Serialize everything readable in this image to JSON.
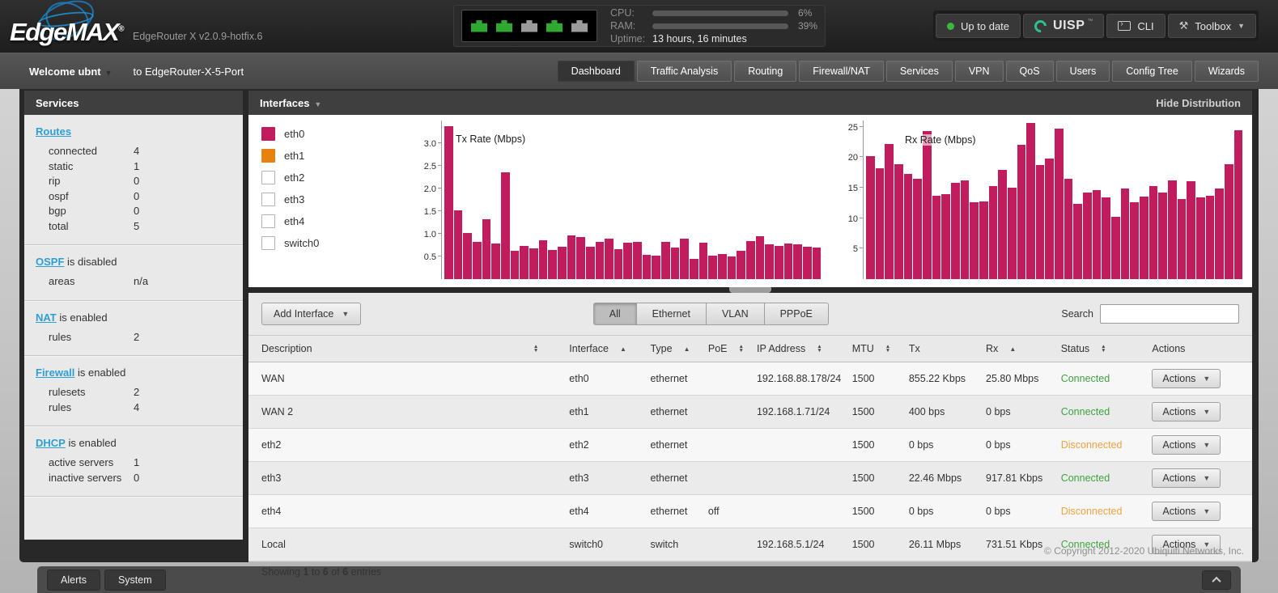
{
  "header": {
    "logo": "EdgeMAX",
    "logo_reg": "®",
    "version": "EdgeRouter X v2.0.9-hotfix.6",
    "ports": [
      "on",
      "on",
      "off",
      "on",
      "off"
    ],
    "stats": {
      "cpu_label": "CPU:",
      "cpu_pct": 6,
      "cpu_text": "6%",
      "ram_label": "RAM:",
      "ram_pct": 39,
      "ram_text": "39%",
      "uptime_label": "Uptime:",
      "uptime": "13 hours, 16 minutes"
    },
    "buttons": {
      "update": "Up to date",
      "uisp": "UISP",
      "uisp_tm": "™",
      "cli": "CLI",
      "toolbox": "Toolbox"
    }
  },
  "navbar": {
    "welcome": "Welcome ubnt",
    "to_device": "to EdgeRouter-X-5-Port",
    "tabs": [
      {
        "label": "Dashboard",
        "active": true
      },
      {
        "label": "Traffic Analysis",
        "active": false
      },
      {
        "label": "Routing",
        "active": false
      },
      {
        "label": "Firewall/NAT",
        "active": false
      },
      {
        "label": "Services",
        "active": false
      },
      {
        "label": "VPN",
        "active": false
      },
      {
        "label": "QoS",
        "active": false
      },
      {
        "label": "Users",
        "active": false
      },
      {
        "label": "Config Tree",
        "active": false
      },
      {
        "label": "Wizards",
        "active": false
      }
    ]
  },
  "sidebar": {
    "title": "Services",
    "sections": [
      {
        "link": "Routes",
        "suffix": "",
        "rows": [
          [
            "connected",
            "4"
          ],
          [
            "static",
            "1"
          ],
          [
            "rip",
            "0"
          ],
          [
            "ospf",
            "0"
          ],
          [
            "bgp",
            "0"
          ],
          [
            "total",
            "5"
          ]
        ]
      },
      {
        "link": "OSPF",
        "suffix": " is disabled",
        "rows": [
          [
            "areas",
            "n/a"
          ]
        ]
      },
      {
        "link": "NAT",
        "suffix": " is enabled",
        "rows": [
          [
            "rules",
            "2"
          ]
        ]
      },
      {
        "link": "Firewall",
        "suffix": " is enabled",
        "rows": [
          [
            "rulesets",
            "2"
          ],
          [
            "rules",
            "4"
          ]
        ]
      },
      {
        "link": "DHCP",
        "suffix": " is enabled",
        "rows": [
          [
            "active servers",
            "1"
          ],
          [
            "inactive servers",
            "0"
          ]
        ]
      }
    ]
  },
  "main": {
    "panel_title": "Interfaces",
    "hide_distribution": "Hide Distribution",
    "legend": [
      {
        "label": "eth0",
        "color": "#c11d5e"
      },
      {
        "label": "eth1",
        "color": "#e8820e"
      },
      {
        "label": "eth2",
        "color": null
      },
      {
        "label": "eth3",
        "color": null
      },
      {
        "label": "eth4",
        "color": null
      },
      {
        "label": "switch0",
        "color": null
      }
    ],
    "toolbar": {
      "add_interface": "Add Interface",
      "filters": [
        {
          "label": "All",
          "active": true
        },
        {
          "label": "Ethernet",
          "active": false
        },
        {
          "label": "VLAN",
          "active": false
        },
        {
          "label": "PPPoE",
          "active": false
        }
      ],
      "search_label": "Search",
      "search_value": ""
    },
    "table": {
      "columns": [
        {
          "label": "Description",
          "sort": "both"
        },
        {
          "label": "Interface",
          "sort": "asc"
        },
        {
          "label": "Type",
          "sort": "asc"
        },
        {
          "label": "PoE",
          "sort": "both"
        },
        {
          "label": "IP Address",
          "sort": "both"
        },
        {
          "label": "MTU",
          "sort": "both"
        },
        {
          "label": "Tx",
          "sort": "none"
        },
        {
          "label": "Rx",
          "sort": "asc"
        },
        {
          "label": "Status",
          "sort": "both"
        },
        {
          "label": "Actions",
          "sort": "none"
        }
      ],
      "actions_label": "Actions",
      "rows": [
        {
          "description": "WAN",
          "interface": "eth0",
          "type": "ethernet",
          "poe": "",
          "ip": "192.168.88.178/24",
          "mtu": "1500",
          "tx": "855.22 Kbps",
          "rx": "25.80 Mbps",
          "status": "Connected"
        },
        {
          "description": "WAN 2",
          "interface": "eth1",
          "type": "ethernet",
          "poe": "",
          "ip": "192.168.1.71/24",
          "mtu": "1500",
          "tx": "400 bps",
          "rx": "0 bps",
          "status": "Connected"
        },
        {
          "description": "eth2",
          "interface": "eth2",
          "type": "ethernet",
          "poe": "",
          "ip": "",
          "mtu": "1500",
          "tx": "0 bps",
          "rx": "0 bps",
          "status": "Disconnected"
        },
        {
          "description": "eth3",
          "interface": "eth3",
          "type": "ethernet",
          "poe": "",
          "ip": "",
          "mtu": "1500",
          "tx": "22.46 Mbps",
          "rx": "917.81 Kbps",
          "status": "Connected"
        },
        {
          "description": "eth4",
          "interface": "eth4",
          "type": "ethernet",
          "poe": "off",
          "ip": "",
          "mtu": "1500",
          "tx": "0 bps",
          "rx": "0 bps",
          "status": "Disconnected"
        },
        {
          "description": "Local",
          "interface": "switch0",
          "type": "switch",
          "poe": "",
          "ip": "192.168.5.1/24",
          "mtu": "1500",
          "tx": "26.11 Mbps",
          "rx": "731.51 Kbps",
          "status": "Connected"
        }
      ]
    },
    "showing": {
      "s1": "Showing ",
      "b1": "1",
      "s2": " to ",
      "b2": "6",
      "s3": " of ",
      "b3": "6",
      "s4": " entries"
    },
    "footer_copyright": "© Copyright 2012-2020 Ubiquiti Networks, Inc."
  },
  "chart_data": [
    {
      "type": "bar",
      "name": "tx-rate",
      "title": "Tx Rate (Mbps)",
      "ylim": [
        0,
        3.5
      ],
      "yticks": [
        0.5,
        1.0,
        1.5,
        2.0,
        2.5,
        3.0
      ],
      "ytick_labels": [
        "0.5",
        "1.0",
        "1.5",
        "2.0",
        "2.5",
        "3.0"
      ],
      "grid": false,
      "legend_position": "left",
      "series": [
        {
          "name": "eth0",
          "color": "#c11d5e",
          "values": [
            3.38,
            1.52,
            1.02,
            0.82,
            1.32,
            0.79,
            2.36,
            0.63,
            0.74,
            0.67,
            0.85,
            0.64,
            0.72,
            0.96,
            0.92,
            0.72,
            0.82,
            0.9,
            0.66,
            0.8,
            0.82,
            0.54,
            0.52,
            0.82,
            0.7,
            0.9,
            0.44,
            0.8,
            0.52,
            0.56,
            0.5,
            0.62,
            0.84,
            0.94,
            0.76,
            0.74,
            0.78,
            0.76,
            0.72,
            0.7
          ]
        }
      ]
    },
    {
      "type": "bar",
      "name": "rx-rate",
      "title": "Rx Rate (Mbps)",
      "ylim": [
        0,
        26
      ],
      "yticks": [
        5,
        10,
        15,
        20,
        25
      ],
      "ytick_labels": [
        "5",
        "10",
        "15",
        "20",
        "25"
      ],
      "grid": false,
      "legend_position": "left",
      "series": [
        {
          "name": "eth0",
          "color": "#c11d5e",
          "values": [
            20.2,
            18.2,
            22.2,
            18.8,
            17.2,
            16.5,
            24.3,
            13.7,
            13.9,
            15.8,
            16.2,
            12.6,
            12.7,
            15.2,
            17.9,
            15.0,
            22.0,
            25.6,
            18.7,
            19.8,
            24.7,
            16.5,
            12.4,
            14.2,
            14.6,
            13.4,
            10.2,
            14.9,
            12.6,
            13.5,
            15.2,
            14.2,
            16.2,
            13.1,
            16.0,
            13.4,
            13.7,
            14.8,
            18.8,
            24.4
          ]
        }
      ]
    }
  ],
  "colors": {
    "accent_blue": "#2ba0d6",
    "link": "#2d9fd3",
    "connected": "#3fa33f",
    "disconnected": "#efa143",
    "bar_crimson": "#c11d5e",
    "bar_orange": "#e8820e",
    "update_green": "#3cb83c",
    "uisp_teal": "#2fbf91",
    "port_on": "#31a831",
    "port_off": "#9b9b9b"
  },
  "dock": {
    "alerts_label": "Alerts",
    "system_label": "System"
  }
}
